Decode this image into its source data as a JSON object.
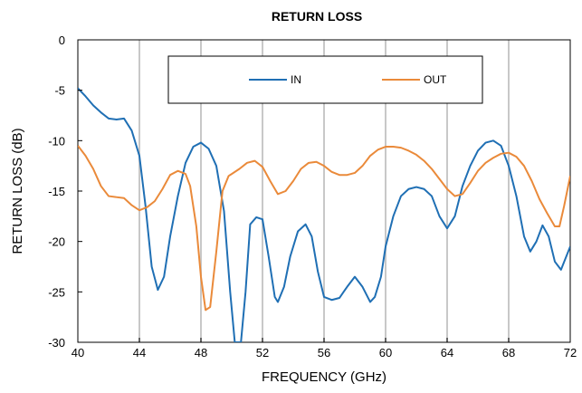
{
  "chart_data": {
    "type": "line",
    "title": "RETURN LOSS",
    "xlabel": "FREQUENCY (GHz)",
    "ylabel": "RETURN LOSS (dB)",
    "xlim": [
      40,
      72
    ],
    "ylim": [
      -30,
      0
    ],
    "xticks": [
      40,
      44,
      48,
      52,
      56,
      60,
      64,
      68,
      72
    ],
    "yticks": [
      0,
      -5,
      -10,
      -15,
      -20,
      -25,
      -30
    ],
    "grid": "vertical",
    "legend_position": "top-center",
    "series": [
      {
        "name": "IN",
        "color": "#1f6fb4",
        "points": [
          [
            40,
            -4.8
          ],
          [
            40.5,
            -5.6
          ],
          [
            41,
            -6.5
          ],
          [
            41.5,
            -7.2
          ],
          [
            42,
            -7.8
          ],
          [
            42.5,
            -7.9
          ],
          [
            43,
            -7.8
          ],
          [
            43.5,
            -9.0
          ],
          [
            44,
            -11.5
          ],
          [
            44.4,
            -16.5
          ],
          [
            44.8,
            -22.5
          ],
          [
            45.2,
            -24.8
          ],
          [
            45.6,
            -23.5
          ],
          [
            46,
            -19.5
          ],
          [
            46.5,
            -15.5
          ],
          [
            47,
            -12.2
          ],
          [
            47.5,
            -10.6
          ],
          [
            48,
            -10.2
          ],
          [
            48.5,
            -10.8
          ],
          [
            49,
            -12.5
          ],
          [
            49.5,
            -17
          ],
          [
            49.9,
            -25
          ],
          [
            50.2,
            -30
          ],
          [
            50.6,
            -30
          ],
          [
            50.9,
            -25
          ],
          [
            51.2,
            -18.3
          ],
          [
            51.6,
            -17.6
          ],
          [
            52,
            -17.8
          ],
          [
            52.4,
            -21.5
          ],
          [
            52.8,
            -25.5
          ],
          [
            53,
            -26.0
          ],
          [
            53.4,
            -24.5
          ],
          [
            53.8,
            -21.5
          ],
          [
            54.3,
            -19
          ],
          [
            54.8,
            -18.3
          ],
          [
            55.2,
            -19.5
          ],
          [
            55.6,
            -23
          ],
          [
            56,
            -25.5
          ],
          [
            56.5,
            -25.8
          ],
          [
            57,
            -25.6
          ],
          [
            57.5,
            -24.5
          ],
          [
            58,
            -23.5
          ],
          [
            58.5,
            -24.5
          ],
          [
            59,
            -26.0
          ],
          [
            59.3,
            -25.5
          ],
          [
            59.7,
            -23.5
          ],
          [
            60,
            -20.5
          ],
          [
            60.5,
            -17.5
          ],
          [
            61,
            -15.5
          ],
          [
            61.5,
            -14.8
          ],
          [
            62,
            -14.6
          ],
          [
            62.5,
            -14.8
          ],
          [
            63,
            -15.5
          ],
          [
            63.5,
            -17.5
          ],
          [
            64,
            -18.7
          ],
          [
            64.5,
            -17.5
          ],
          [
            65,
            -14.5
          ],
          [
            65.5,
            -12.5
          ],
          [
            66,
            -11.0
          ],
          [
            66.5,
            -10.2
          ],
          [
            67,
            -10.0
          ],
          [
            67.5,
            -10.5
          ],
          [
            68,
            -12.5
          ],
          [
            68.5,
            -15.5
          ],
          [
            69,
            -19.5
          ],
          [
            69.4,
            -21.0
          ],
          [
            69.8,
            -20.0
          ],
          [
            70.2,
            -18.4
          ],
          [
            70.6,
            -19.5
          ],
          [
            71,
            -22.0
          ],
          [
            71.4,
            -22.8
          ],
          [
            72,
            -20.5
          ]
        ]
      },
      {
        "name": "OUT",
        "color": "#ea8a3a",
        "points": [
          [
            40,
            -10.5
          ],
          [
            40.5,
            -11.5
          ],
          [
            41,
            -12.8
          ],
          [
            41.5,
            -14.5
          ],
          [
            42,
            -15.5
          ],
          [
            42.5,
            -15.6
          ],
          [
            43,
            -15.7
          ],
          [
            43.5,
            -16.4
          ],
          [
            44,
            -16.9
          ],
          [
            44.5,
            -16.6
          ],
          [
            45,
            -16
          ],
          [
            45.5,
            -14.8
          ],
          [
            46,
            -13.4
          ],
          [
            46.5,
            -13.0
          ],
          [
            47,
            -13.3
          ],
          [
            47.3,
            -14.5
          ],
          [
            47.7,
            -18.5
          ],
          [
            48,
            -23.5
          ],
          [
            48.3,
            -26.8
          ],
          [
            48.6,
            -26.5
          ],
          [
            49,
            -21
          ],
          [
            49.4,
            -15
          ],
          [
            49.8,
            -13.5
          ],
          [
            50.5,
            -12.8
          ],
          [
            51,
            -12.2
          ],
          [
            51.5,
            -12.0
          ],
          [
            52,
            -12.6
          ],
          [
            52.5,
            -14.0
          ],
          [
            53,
            -15.3
          ],
          [
            53.5,
            -15.0
          ],
          [
            54,
            -14.0
          ],
          [
            54.5,
            -12.8
          ],
          [
            55,
            -12.2
          ],
          [
            55.5,
            -12.1
          ],
          [
            56,
            -12.5
          ],
          [
            56.5,
            -13.1
          ],
          [
            57,
            -13.4
          ],
          [
            57.5,
            -13.4
          ],
          [
            58,
            -13.2
          ],
          [
            58.5,
            -12.5
          ],
          [
            59,
            -11.5
          ],
          [
            59.5,
            -10.9
          ],
          [
            60,
            -10.6
          ],
          [
            60.5,
            -10.6
          ],
          [
            61,
            -10.7
          ],
          [
            61.5,
            -11.0
          ],
          [
            62,
            -11.4
          ],
          [
            62.5,
            -12.0
          ],
          [
            63,
            -12.8
          ],
          [
            63.5,
            -13.8
          ],
          [
            64,
            -14.8
          ],
          [
            64.5,
            -15.5
          ],
          [
            65,
            -15.3
          ],
          [
            65.5,
            -14.2
          ],
          [
            66,
            -13.0
          ],
          [
            66.5,
            -12.2
          ],
          [
            67,
            -11.7
          ],
          [
            67.5,
            -11.3
          ],
          [
            68,
            -11.2
          ],
          [
            68.5,
            -11.6
          ],
          [
            69,
            -12.5
          ],
          [
            69.5,
            -14.0
          ],
          [
            70,
            -15.8
          ],
          [
            70.5,
            -17.2
          ],
          [
            71,
            -18.5
          ],
          [
            71.3,
            -18.5
          ],
          [
            71.6,
            -16.5
          ],
          [
            72,
            -13.5
          ]
        ]
      }
    ]
  }
}
